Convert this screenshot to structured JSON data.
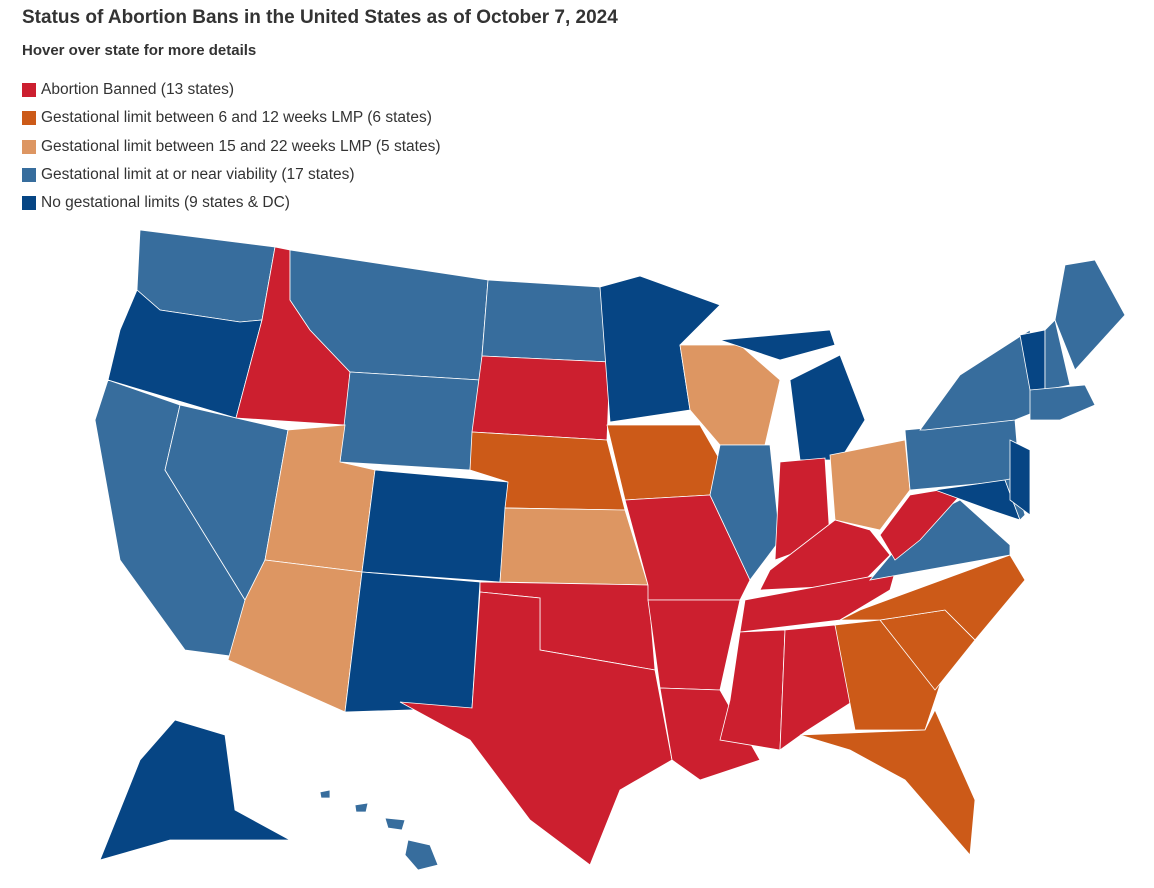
{
  "title": "Status of Abortion Bans in the United States as of October 7, 2024",
  "subtitle": "Hover over state for more details",
  "legend": [
    {
      "label": "Abortion Banned (13 states)",
      "color": "#cc1f2f"
    },
    {
      "label": "Gestational limit between 6 and 12 weeks LMP (6 states)",
      "color": "#cc5a18"
    },
    {
      "label": "Gestational limit between 15 and 22 weeks LMP (5 states)",
      "color": "#dd9662"
    },
    {
      "label": "Gestational limit at or near viability (17 states)",
      "color": "#376d9d"
    },
    {
      "label": "No gestational limits (9 states & DC)",
      "color": "#064584"
    }
  ]
}
